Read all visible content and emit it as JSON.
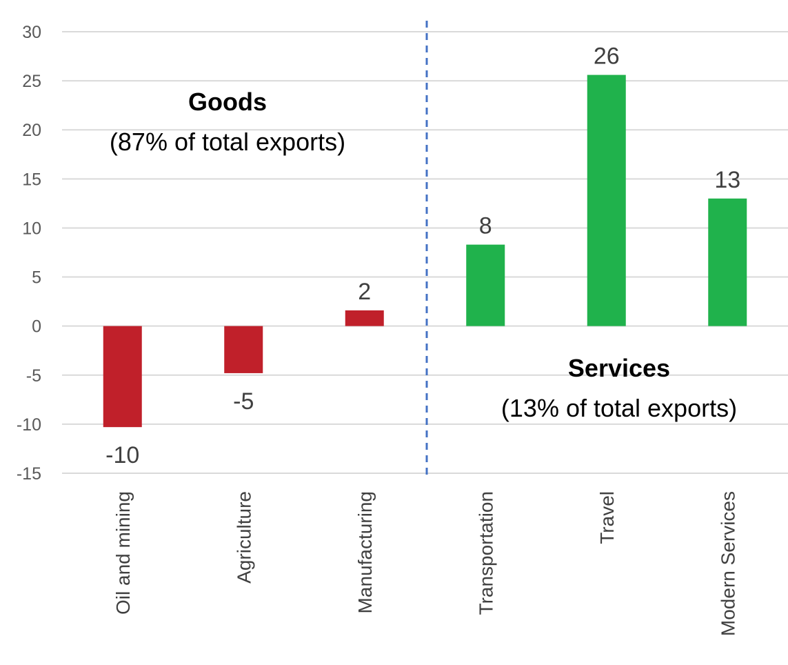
{
  "chart_data": {
    "type": "bar",
    "categories": [
      "Oil and mining",
      "Agriculture",
      "Manufacturing",
      "Transportation",
      "Travel",
      "Modern Services"
    ],
    "values": [
      -10.3,
      -4.8,
      1.6,
      8.3,
      25.6,
      13.0
    ],
    "data_labels": [
      "-10",
      "-5",
      "2",
      "8",
      "26",
      "13"
    ],
    "ylim": [
      -15,
      30
    ],
    "yticks": [
      30,
      25,
      20,
      15,
      10,
      5,
      0,
      -5,
      -10,
      -15
    ],
    "title": "",
    "xlabel": "",
    "ylabel": "",
    "grid": true,
    "legend": "none",
    "colors": {
      "goods": "#c0202a",
      "services": "#20b24c",
      "divider": "#4472c4",
      "grid": "#d9d9d9"
    },
    "bar_groups": [
      "goods",
      "goods",
      "goods",
      "services",
      "services",
      "services"
    ],
    "annotations": {
      "goods_title": "Goods",
      "goods_share": "(87% of total exports)",
      "services_title": "Services",
      "services_share": "(13% of total exports)"
    }
  }
}
